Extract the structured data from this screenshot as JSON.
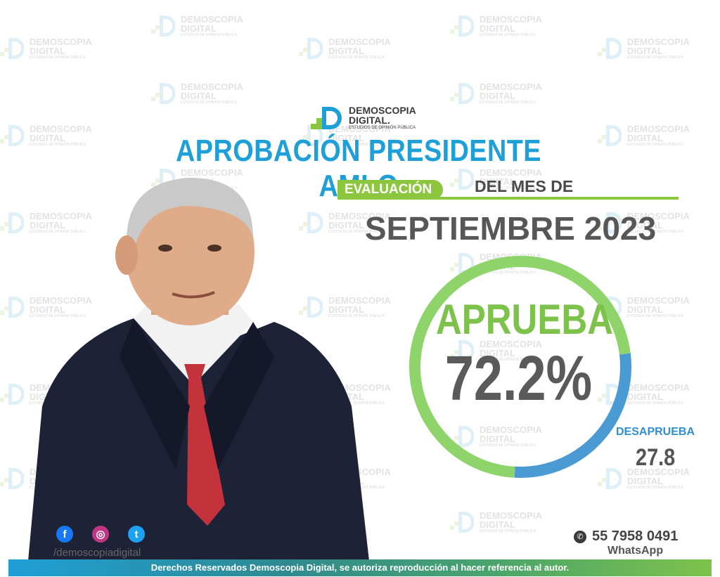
{
  "brand": {
    "name_line1": "DEMOSCOPIA",
    "name_line2": "DIGITAL.",
    "tagline": "ESTUDIOS DE OPINIÓN PÚBLICA",
    "watermark_line1": "DEMOSCOPIA",
    "watermark_line2": "DIGITAL",
    "watermark_tagline": "ESTUDIOS DE OPINIÓN PÚBLICA",
    "colors": {
      "blue": "#1f9fd7",
      "green": "#8cc63f",
      "gray": "#575757"
    }
  },
  "header": {
    "title": "APROBACIÓN PRESIDENTE AMLO",
    "eval_label": "EVALUACIÓN",
    "del_mes": "DEL MES DE",
    "month": "SEPTIEMBRE 2023"
  },
  "chart_data": {
    "type": "pie",
    "slices": [
      {
        "name": "APRUEBA",
        "value": 72.2,
        "color": "#8fd46a"
      },
      {
        "name": "DESAPRUEBA",
        "value": 27.8,
        "color": "#4a9ad4"
      }
    ],
    "labels": {
      "approve": "APRUEBA",
      "approve_value": "72.2%",
      "disapprove": "DESAPRUEBA",
      "disapprove_value": "27.8"
    }
  },
  "social": {
    "icons": [
      "facebook-icon",
      "instagram-icon",
      "twitter-icon"
    ],
    "handle": "/demoscopiadigital"
  },
  "contact": {
    "phone": "55 7958 0491",
    "whatsapp_label": "WhatsApp"
  },
  "footer": {
    "text": "Derechos Reservados Demoscopia Digital, se autoriza reproducción al hacer referencia al autor."
  }
}
